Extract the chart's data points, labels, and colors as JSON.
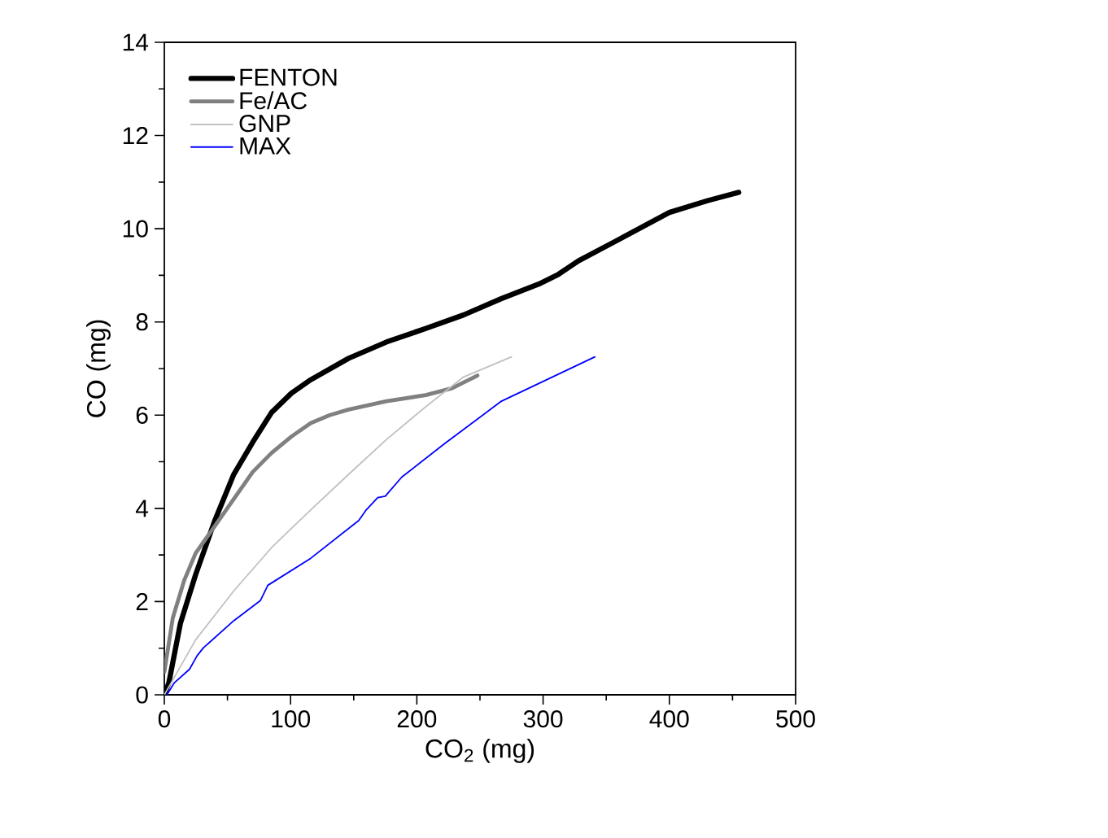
{
  "chart_data": {
    "type": "line",
    "xlabel": "CO$_{2}$ (mg)",
    "ylabel": "CO (mg)",
    "xlim": [
      0,
      500
    ],
    "ylim": [
      0,
      14
    ],
    "xticks": [
      0,
      100,
      200,
      300,
      400,
      500
    ],
    "yticks": [
      0,
      2,
      4,
      6,
      8,
      10,
      12,
      14
    ],
    "grid": false,
    "legend": "top left",
    "marker": "none",
    "line_style": "solid",
    "series": [
      {
        "name": "FENTON",
        "color": "#000000",
        "x": [
          0,
          3.6,
          12.7,
          24.8,
          40,
          55,
          70,
          85,
          100.6,
          116,
          146,
          176,
          207,
          237,
          267,
          298,
          312,
          328,
          358,
          400,
          430,
          455
        ],
        "values": [
          0,
          0.26,
          1.53,
          2.58,
          3.74,
          4.73,
          5.42,
          6.06,
          6.47,
          6.76,
          7.22,
          7.57,
          7.86,
          8.15,
          8.5,
          8.83,
          9.02,
          9.31,
          9.74,
          10.35,
          10.6,
          10.78
        ]
      },
      {
        "name": "Fe/AC",
        "color": "#808080",
        "x": [
          0,
          6.7,
          15.8,
          24.8,
          40,
          55,
          70,
          85,
          100.6,
          116,
          131,
          146,
          176,
          207,
          228,
          237,
          248
        ],
        "values": [
          0.49,
          1.65,
          2.46,
          3.04,
          3.62,
          4.2,
          4.78,
          5.19,
          5.54,
          5.83,
          6.0,
          6.12,
          6.3,
          6.43,
          6.58,
          6.7,
          6.85
        ]
      },
      {
        "name": "GNP",
        "color": "#c0c0c0",
        "x": [
          0,
          24.8,
          55,
          85,
          116,
          146,
          176,
          207,
          237,
          275
        ],
        "values": [
          0,
          1.18,
          2.23,
          3.16,
          3.97,
          4.73,
          5.48,
          6.18,
          6.82,
          7.25
        ]
      },
      {
        "name": "MAX",
        "color": "#0000ff",
        "x": [
          2,
          8,
          20,
          26,
          31,
          55,
          76,
          82,
          116,
          154,
          160,
          169,
          175,
          188,
          222,
          267,
          341
        ],
        "values": [
          0,
          0.26,
          0.55,
          0.84,
          1.01,
          1.59,
          2.02,
          2.35,
          2.93,
          3.74,
          3.97,
          4.23,
          4.26,
          4.67,
          5.39,
          6.3,
          7.25
        ]
      }
    ]
  }
}
